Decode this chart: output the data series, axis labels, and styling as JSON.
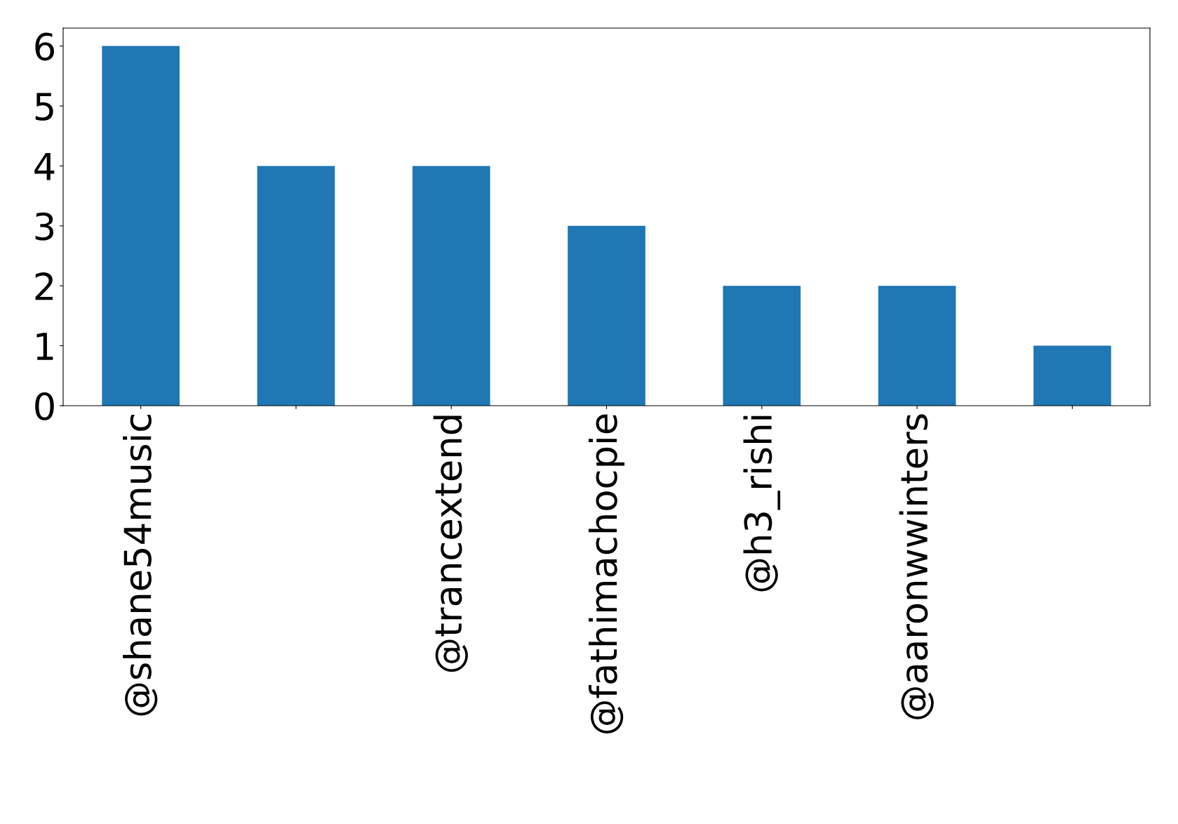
{
  "chart_data": {
    "type": "bar",
    "categories": [
      "@shane54music",
      null,
      "@trancextend",
      "@fathimachocpie",
      "@h3_rishi",
      "@aaronwwinters",
      null
    ],
    "values": [
      6,
      4,
      4,
      3,
      2,
      2,
      1
    ],
    "color": "#1f77b4",
    "ylim": [
      0,
      6.3
    ],
    "yticks": [
      0,
      1,
      2,
      3,
      4,
      5,
      6
    ],
    "grid": false,
    "legend": false
  }
}
